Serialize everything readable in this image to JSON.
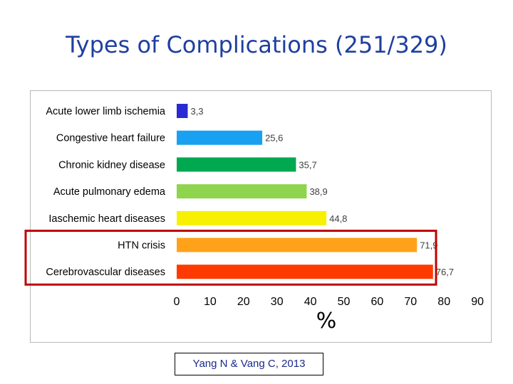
{
  "title": "Types of Complications (251/329)",
  "citation": "Yang N  & Vang C, 2013",
  "chart_data": {
    "type": "bar",
    "orientation": "horizontal",
    "categories": [
      "Acute lower limb ischemia",
      "Congestive heart failure",
      "Chronic kidney disease",
      "Acute pulmonary edema",
      "Iaschemic heart diseases",
      "HTN crisis",
      "Cerebrovascular diseases"
    ],
    "values": [
      3.3,
      25.6,
      35.7,
      38.9,
      44.8,
      71.9,
      76.7
    ],
    "value_labels": [
      "3,3",
      "25,6",
      "35,7",
      "38,9",
      "44,8",
      "71,9",
      "76,7"
    ],
    "bar_colors": [
      "#2a2ad4",
      "#1aa0f0",
      "#00a84f",
      "#8ed44c",
      "#f7f000",
      "#ffa21a",
      "#ff3a00"
    ],
    "xlim": [
      0,
      90
    ],
    "xticks": [
      "0",
      "10",
      "20",
      "30",
      "40",
      "50",
      "60",
      "70",
      "80",
      "90"
    ],
    "xlabel": "%",
    "ylabel": "",
    "grid": false,
    "legend": "none",
    "highlight": {
      "categories": [
        "HTN crisis",
        "Cerebrovascular diseases"
      ],
      "color": "#c00000"
    }
  }
}
